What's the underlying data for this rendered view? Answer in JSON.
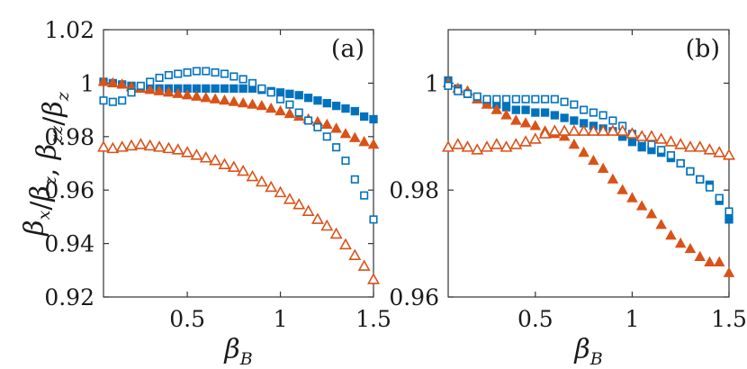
{
  "colors": {
    "blue": "#0072BD",
    "orange": "#D95319",
    "axis": "#333333",
    "text": "#1a1a1a"
  },
  "axes_text": {
    "ylabel": {
      "parts": [
        {
          "text": "β",
          "sub": "x"
        },
        {
          "text": "/"
        },
        {
          "text": "β",
          "sub": "z"
        },
        {
          "text": ",  "
        },
        {
          "text": "β",
          "sub": "zz"
        },
        {
          "text": "/"
        },
        {
          "text": "β",
          "sub": "z"
        }
      ]
    },
    "xlabel": {
      "text": "β",
      "sub": "B"
    }
  },
  "chart_data": [
    {
      "type": "scatter",
      "panel_label": "(a)",
      "xlim": [
        0.05,
        1.5
      ],
      "ylim": [
        0.92,
        1.02
      ],
      "xticks": [
        0.5,
        1,
        1.5
      ],
      "xtick_labels": [
        "0.5",
        "1",
        "1.5"
      ],
      "yticks": [
        0.92,
        0.94,
        0.96,
        0.98,
        1.0,
        1.02
      ],
      "ytick_labels": [
        "0.92",
        "0.94",
        "0.96",
        "0.98",
        "1",
        "1.02"
      ],
      "grid": false,
      "x": [
        0.05,
        0.1,
        0.15,
        0.2,
        0.25,
        0.3,
        0.35,
        0.4,
        0.45,
        0.5,
        0.55,
        0.6,
        0.65,
        0.7,
        0.75,
        0.8,
        0.85,
        0.9,
        0.95,
        1.0,
        1.05,
        1.1,
        1.15,
        1.2,
        1.25,
        1.3,
        1.35,
        1.4,
        1.45,
        1.5
      ],
      "series": [
        {
          "marker": "square-open",
          "color": "blue",
          "values": [
            0.9935,
            0.993,
            0.9935,
            0.9965,
            0.999,
            1.0005,
            1.002,
            1.003,
            1.0035,
            1.004,
            1.0045,
            1.0045,
            1.004,
            1.0035,
            1.0025,
            1.0015,
            1.0,
            0.998,
            0.9965,
            0.994,
            0.992,
            0.989,
            0.986,
            0.9835,
            0.98,
            0.976,
            0.971,
            0.964,
            0.958,
            0.949
          ]
        },
        {
          "marker": "square-filled",
          "color": "blue",
          "values": [
            1.0005,
            1.0,
            0.9995,
            0.999,
            0.998,
            0.998,
            0.998,
            0.998,
            0.998,
            0.998,
            0.998,
            0.998,
            0.998,
            0.998,
            0.998,
            0.998,
            0.998,
            0.9975,
            0.997,
            0.9965,
            0.996,
            0.9955,
            0.9945,
            0.9935,
            0.9925,
            0.9915,
            0.9905,
            0.9895,
            0.9875,
            0.9865
          ]
        },
        {
          "marker": "triangle-filled",
          "color": "orange",
          "values": [
            1.0005,
            1.0,
            0.9995,
            0.9985,
            0.998,
            0.9975,
            0.997,
            0.9965,
            0.996,
            0.9955,
            0.995,
            0.9945,
            0.994,
            0.9935,
            0.993,
            0.9925,
            0.992,
            0.9915,
            0.9905,
            0.9895,
            0.9885,
            0.9875,
            0.9865,
            0.9855,
            0.9845,
            0.983,
            0.981,
            0.9795,
            0.978,
            0.977
          ]
        },
        {
          "marker": "triangle-open",
          "color": "orange",
          "values": [
            0.976,
            0.9755,
            0.976,
            0.9765,
            0.977,
            0.9765,
            0.976,
            0.9755,
            0.975,
            0.974,
            0.973,
            0.972,
            0.971,
            0.9695,
            0.9685,
            0.967,
            0.965,
            0.963,
            0.961,
            0.959,
            0.9565,
            0.9545,
            0.952,
            0.949,
            0.9465,
            0.9435,
            0.9395,
            0.9355,
            0.9315,
            0.9265
          ]
        }
      ]
    },
    {
      "type": "scatter",
      "panel_label": "(b)",
      "xlim": [
        0.05,
        1.5
      ],
      "ylim": [
        0.96,
        1.01
      ],
      "xticks": [
        0.5,
        1,
        1.5
      ],
      "xtick_labels": [
        "0.5",
        "1",
        "1.5"
      ],
      "yticks": [
        0.96,
        0.98,
        1.0
      ],
      "ytick_labels": [
        "0.96",
        "0.98",
        "1"
      ],
      "grid": false,
      "x": [
        0.05,
        0.1,
        0.15,
        0.2,
        0.25,
        0.3,
        0.35,
        0.4,
        0.45,
        0.5,
        0.55,
        0.6,
        0.65,
        0.7,
        0.75,
        0.8,
        0.85,
        0.9,
        0.95,
        1.0,
        1.05,
        1.1,
        1.15,
        1.2,
        1.25,
        1.3,
        1.35,
        1.4,
        1.45,
        1.5
      ],
      "series": [
        {
          "marker": "square-open",
          "color": "blue",
          "values": [
            0.9995,
            0.9985,
            0.998,
            0.9975,
            0.997,
            0.997,
            0.997,
            0.997,
            0.997,
            0.997,
            0.997,
            0.997,
            0.9965,
            0.996,
            0.995,
            0.9945,
            0.994,
            0.993,
            0.992,
            0.9905,
            0.9895,
            0.9885,
            0.9875,
            0.9865,
            0.985,
            0.9835,
            0.982,
            0.9805,
            0.9785,
            0.976
          ]
        },
        {
          "marker": "square-filled",
          "color": "blue",
          "values": [
            1.0005,
            0.999,
            0.998,
            0.997,
            0.9965,
            0.996,
            0.9955,
            0.995,
            0.995,
            0.9945,
            0.9945,
            0.994,
            0.9935,
            0.993,
            0.9925,
            0.992,
            0.9915,
            0.991,
            0.99,
            0.989,
            0.988,
            0.9875,
            0.987,
            0.986,
            0.985,
            0.9835,
            0.982,
            0.981,
            0.978,
            0.9745
          ]
        },
        {
          "marker": "triangle-filled",
          "color": "orange",
          "values": [
            1.0,
            0.999,
            0.9985,
            0.997,
            0.996,
            0.995,
            0.994,
            0.993,
            0.9925,
            0.992,
            0.991,
            0.9905,
            0.99,
            0.9885,
            0.987,
            0.9855,
            0.984,
            0.982,
            0.98,
            0.9785,
            0.977,
            0.9755,
            0.9735,
            0.9715,
            0.97,
            0.969,
            0.9675,
            0.9665,
            0.9665,
            0.9645
          ]
        },
        {
          "marker": "triangle-open",
          "color": "orange",
          "values": [
            0.988,
            0.9885,
            0.988,
            0.9875,
            0.988,
            0.9885,
            0.988,
            0.9885,
            0.989,
            0.9895,
            0.9905,
            0.991,
            0.991,
            0.991,
            0.991,
            0.991,
            0.991,
            0.991,
            0.991,
            0.9905,
            0.99,
            0.99,
            0.9895,
            0.989,
            0.9885,
            0.988,
            0.988,
            0.9875,
            0.987,
            0.9865
          ]
        }
      ]
    }
  ]
}
